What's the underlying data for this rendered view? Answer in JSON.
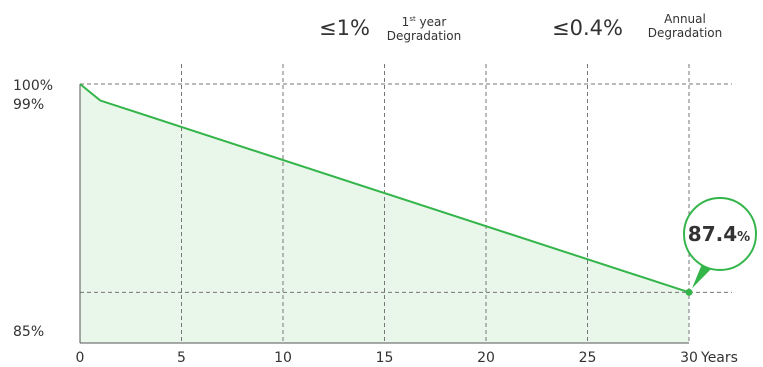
{
  "header": {
    "first_year_value": "≤1%",
    "first_year_sup_number": "1",
    "first_year_sup_suffix": "st",
    "first_year_word": "year",
    "first_year_label_line2": "Degradation",
    "annual_value": "≤0.4%",
    "annual_label_line1": "Annual",
    "annual_label_line2": "Degradation"
  },
  "chart_data": {
    "type": "area",
    "x": [
      0,
      1,
      30
    ],
    "y": [
      100,
      99,
      87.4
    ],
    "xlim": [
      0,
      30
    ],
    "ylim": [
      85,
      100
    ],
    "x_ticks": [
      "0",
      "5",
      "10",
      "15",
      "20",
      "25",
      "30"
    ],
    "x_tick_values": [
      0,
      5,
      10,
      15,
      20,
      25,
      30
    ],
    "x_unit": "Years",
    "y_tick_labels": [
      "100%",
      "99%",
      "85%"
    ],
    "y_tick_values": [
      100,
      99,
      85
    ],
    "grid": true,
    "end_callout": {
      "value": "87.4",
      "unit": "%"
    },
    "colors": {
      "line": "#33b54a",
      "fill": "#e9f6ea",
      "grid": "#777777",
      "axis": "#555555",
      "callout_border": "#33b54a"
    }
  }
}
